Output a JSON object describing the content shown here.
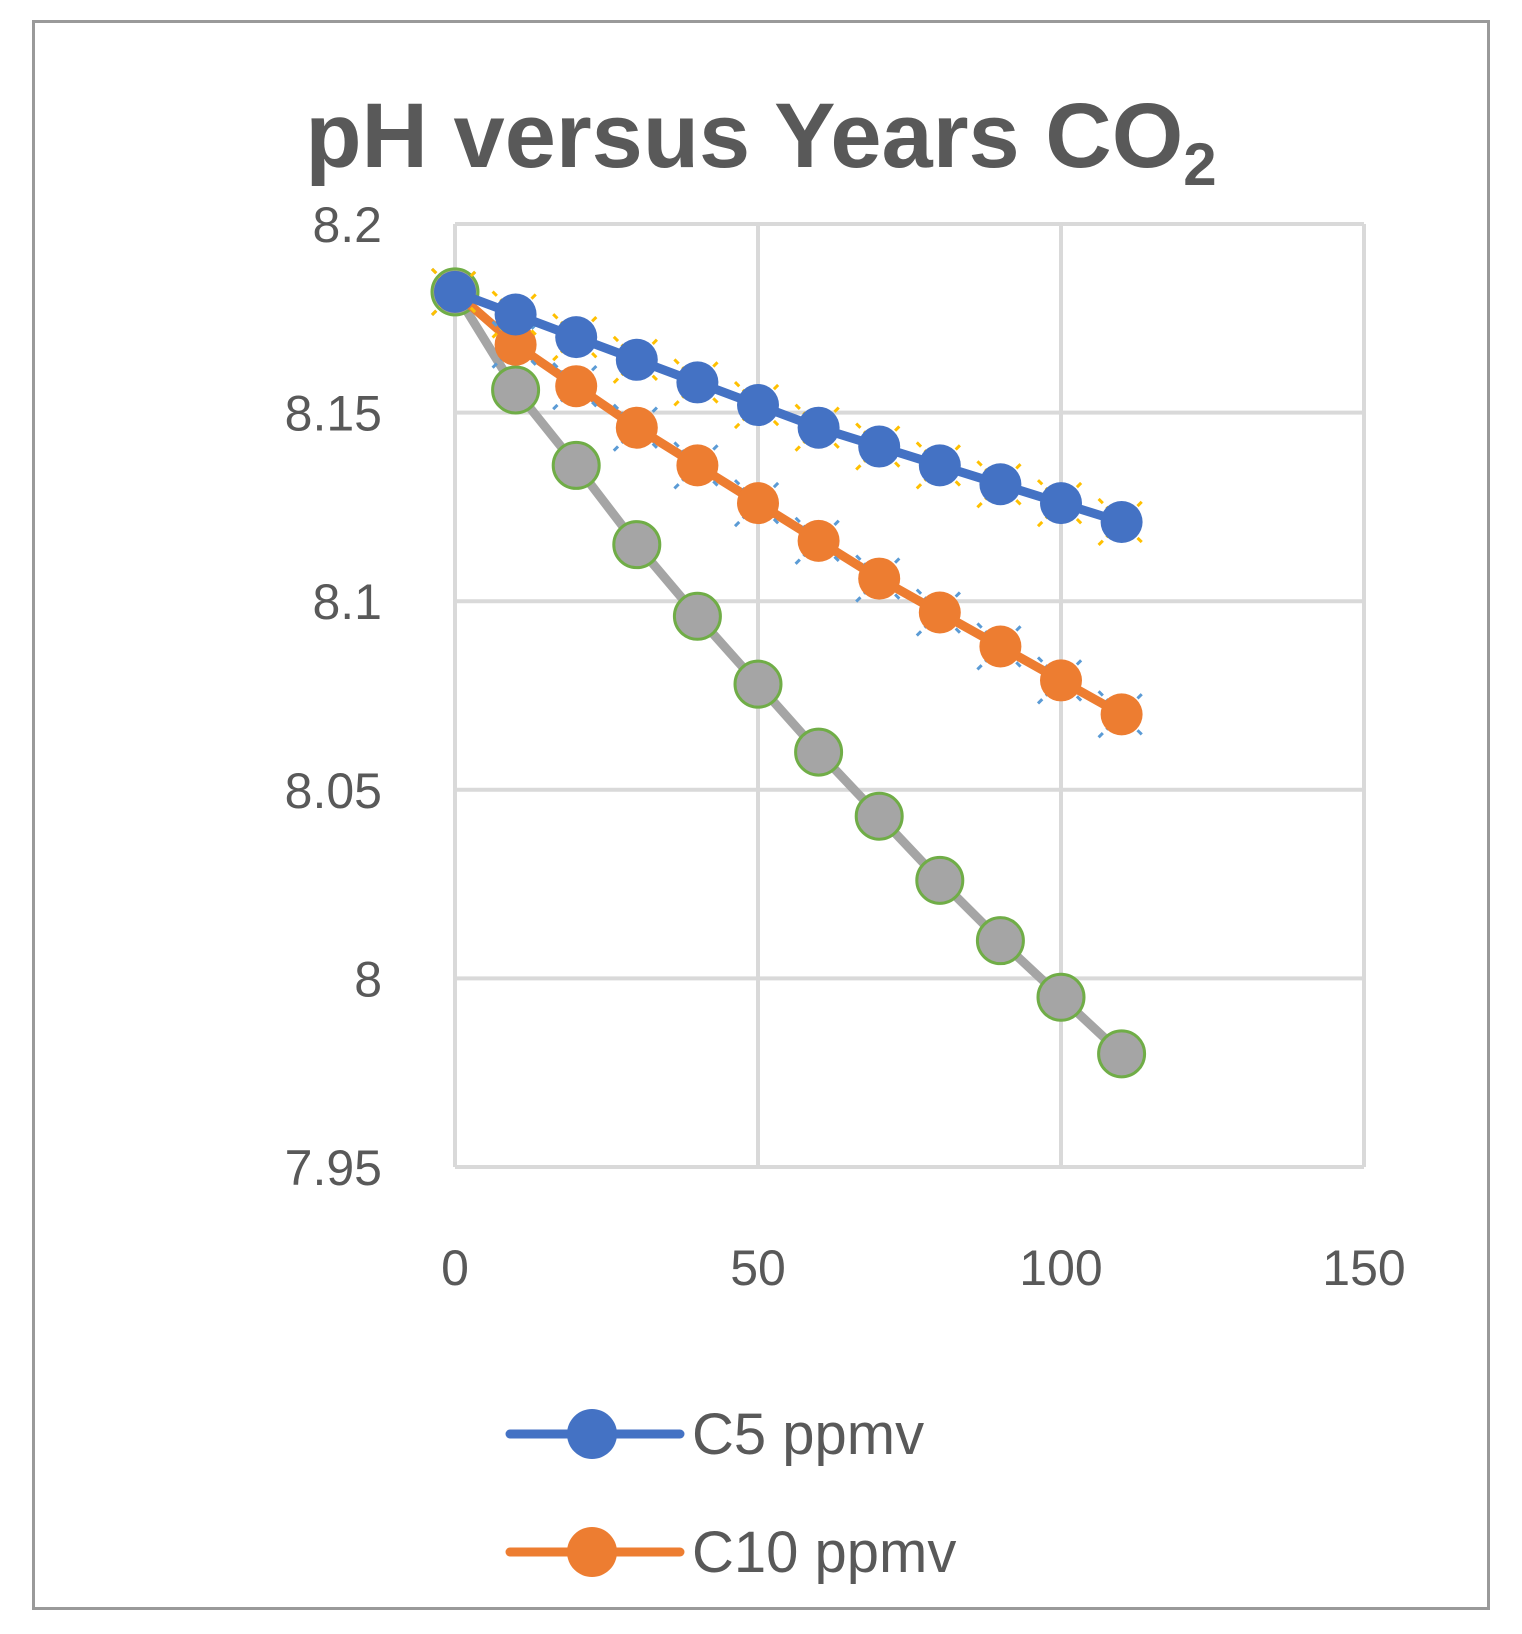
{
  "chart_data": {
    "type": "line",
    "title": {
      "main": "pH versus Years CO",
      "subscript": "2"
    },
    "xlabel": "",
    "ylabel": "",
    "xlim": [
      0,
      150
    ],
    "ylim": [
      7.95,
      8.2
    ],
    "xticks": [
      "0",
      "50",
      "100",
      "150"
    ],
    "yticks": [
      "8.2",
      "8.15",
      "8.1",
      "8.05",
      "8",
      "7.95"
    ],
    "grid": true,
    "legend_position": "bottom-left",
    "x": [
      0,
      10,
      20,
      30,
      40,
      50,
      60,
      70,
      80,
      90,
      100,
      110
    ],
    "series": [
      {
        "name": "C5 ppmv",
        "color": "#4472C4",
        "marker_accent": "#FFC000",
        "values": [
          8.182,
          8.176,
          8.17,
          8.164,
          8.158,
          8.152,
          8.146,
          8.141,
          8.136,
          8.131,
          8.126,
          8.121
        ]
      },
      {
        "name": "C10 ppmv",
        "color": "#ED7D31",
        "marker_accent": "#5B9BD5",
        "values": [
          8.182,
          8.168,
          8.157,
          8.146,
          8.136,
          8.126,
          8.116,
          8.106,
          8.097,
          8.088,
          8.079,
          8.07
        ]
      },
      {
        "name": "",
        "color": "#A5A5A5",
        "marker_accent": "#70AD47",
        "values": [
          8.182,
          8.156,
          8.136,
          8.115,
          8.096,
          8.078,
          8.06,
          8.043,
          8.026,
          8.01,
          7.995,
          7.98
        ]
      }
    ]
  }
}
